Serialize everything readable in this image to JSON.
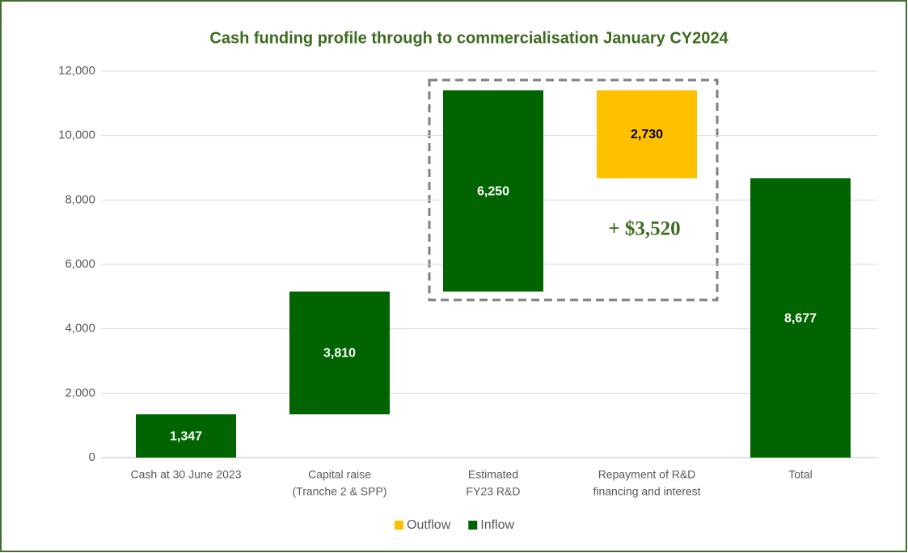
{
  "chart_data": {
    "type": "waterfall",
    "title": "Cash funding profile through to commercialisation January CY2024",
    "categories": [
      [
        "Cash at 30 June 2023"
      ],
      [
        "Capital raise",
        "(Tranche 2 & SPP)"
      ],
      [
        "Estimated",
        "FY23 R&D"
      ],
      [
        "Repayment of R&D",
        "financing and interest"
      ],
      [
        "Total"
      ]
    ],
    "series": [
      {
        "name": "Outflow",
        "color": "#ffc000",
        "values": [
          null,
          null,
          null,
          2730,
          null
        ],
        "value_labels": [
          null,
          null,
          null,
          "2,730",
          null
        ]
      },
      {
        "name": "Inflow",
        "color": "#006400",
        "values": [
          1347,
          3810,
          6250,
          null,
          8677
        ],
        "value_labels": [
          "1,347",
          "3,810",
          "6,250",
          null,
          "8,677"
        ]
      }
    ],
    "ylim": [
      0,
      12000
    ],
    "yticks": [
      0,
      {
        "value": 2000,
        "label": "2,000"
      },
      {
        "value": 4000,
        "label": "4,000"
      },
      {
        "value": 6000,
        "label": "6,000"
      },
      {
        "value": 8000,
        "label": "8,000"
      },
      {
        "value": 10000,
        "label": "10,000"
      },
      {
        "value": 12000,
        "label": "12,000"
      }
    ],
    "grid": true,
    "legend": "bottom",
    "annotation": "+ $3,520"
  }
}
